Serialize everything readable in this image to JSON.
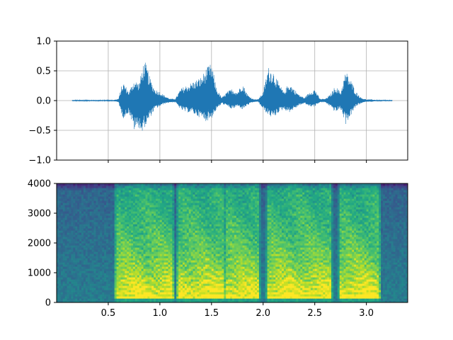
{
  "chart_data": [
    {
      "type": "line",
      "title": "",
      "xlabel": "",
      "ylabel": "",
      "xlim": [
        0.0,
        3.4
      ],
      "ylim": [
        -1.0,
        1.0
      ],
      "grid": true,
      "x_ticks": [
        0.5,
        1.0,
        1.5,
        2.0,
        2.5,
        3.0
      ],
      "x_tick_labels_visible": false,
      "y_ticks": [
        -1.0,
        -0.5,
        0.0,
        0.5,
        1.0
      ],
      "y_tick_labels": [
        "−1.0",
        "−0.5",
        "0.0",
        "0.5",
        "1.0"
      ],
      "line_color": "#1f77b4",
      "signal_start": 0.15,
      "signal_end": 3.25,
      "envelope": {
        "x": [
          0.15,
          0.55,
          0.6,
          0.63,
          0.65,
          0.7,
          0.75,
          0.8,
          0.83,
          0.85,
          0.88,
          0.9,
          0.95,
          1.0,
          1.05,
          1.1,
          1.15,
          1.2,
          1.25,
          1.3,
          1.35,
          1.4,
          1.45,
          1.5,
          1.55,
          1.6,
          1.65,
          1.7,
          1.75,
          1.8,
          1.85,
          1.9,
          1.95,
          2.0,
          2.05,
          2.1,
          2.15,
          2.2,
          2.25,
          2.3,
          2.35,
          2.4,
          2.45,
          2.5,
          2.55,
          2.6,
          2.65,
          2.7,
          2.75,
          2.8,
          2.85,
          2.9,
          2.95,
          3.0,
          3.05,
          3.1,
          3.25
        ],
        "upper": [
          0.01,
          0.01,
          0.03,
          0.25,
          0.3,
          0.15,
          0.35,
          0.3,
          0.55,
          0.68,
          0.55,
          0.4,
          0.2,
          0.15,
          0.08,
          0.03,
          0.03,
          0.2,
          0.25,
          0.3,
          0.35,
          0.4,
          0.55,
          0.63,
          0.2,
          0.05,
          0.15,
          0.2,
          0.15,
          0.3,
          0.1,
          0.03,
          0.02,
          0.15,
          0.57,
          0.5,
          0.3,
          0.15,
          0.3,
          0.2,
          0.1,
          0.05,
          0.15,
          0.2,
          0.03,
          0.03,
          0.1,
          0.25,
          0.15,
          0.5,
          0.35,
          0.15,
          0.05,
          0.02,
          0.02,
          0.01,
          0.01
        ],
        "lower": [
          -0.01,
          -0.01,
          -0.03,
          -0.25,
          -0.3,
          -0.2,
          -0.5,
          -0.45,
          -0.58,
          -0.45,
          -0.4,
          -0.3,
          -0.15,
          -0.1,
          -0.05,
          -0.03,
          -0.03,
          -0.15,
          -0.2,
          -0.2,
          -0.25,
          -0.3,
          -0.35,
          -0.3,
          -0.15,
          -0.05,
          -0.1,
          -0.15,
          -0.1,
          -0.15,
          -0.08,
          -0.03,
          -0.02,
          -0.15,
          -0.25,
          -0.3,
          -0.2,
          -0.15,
          -0.2,
          -0.15,
          -0.08,
          -0.05,
          -0.1,
          -0.1,
          -0.03,
          -0.03,
          -0.1,
          -0.2,
          -0.15,
          -0.4,
          -0.25,
          -0.1,
          -0.05,
          -0.02,
          -0.02,
          -0.01,
          -0.01
        ]
      }
    },
    {
      "type": "heatmap",
      "title": "",
      "xlabel": "",
      "ylabel": "",
      "xlim": [
        0.0,
        3.4
      ],
      "ylim": [
        0,
        4000
      ],
      "grid": false,
      "colormap": "viridis",
      "x_ticks": [
        0.5,
        1.0,
        1.5,
        2.0,
        2.5,
        3.0
      ],
      "x_tick_labels": [
        "0.5",
        "1.0",
        "1.5",
        "2.0",
        "2.5",
        "3.0"
      ],
      "y_ticks": [
        0,
        1000,
        2000,
        3000,
        4000
      ],
      "y_tick_labels": [
        "0",
        "1000",
        "2000",
        "3000",
        "4000"
      ],
      "speech_segments": [
        [
          0.58,
          1.12
        ],
        [
          1.18,
          1.62
        ],
        [
          1.65,
          1.95
        ],
        [
          2.05,
          2.65
        ],
        [
          2.75,
          3.12
        ]
      ]
    }
  ]
}
